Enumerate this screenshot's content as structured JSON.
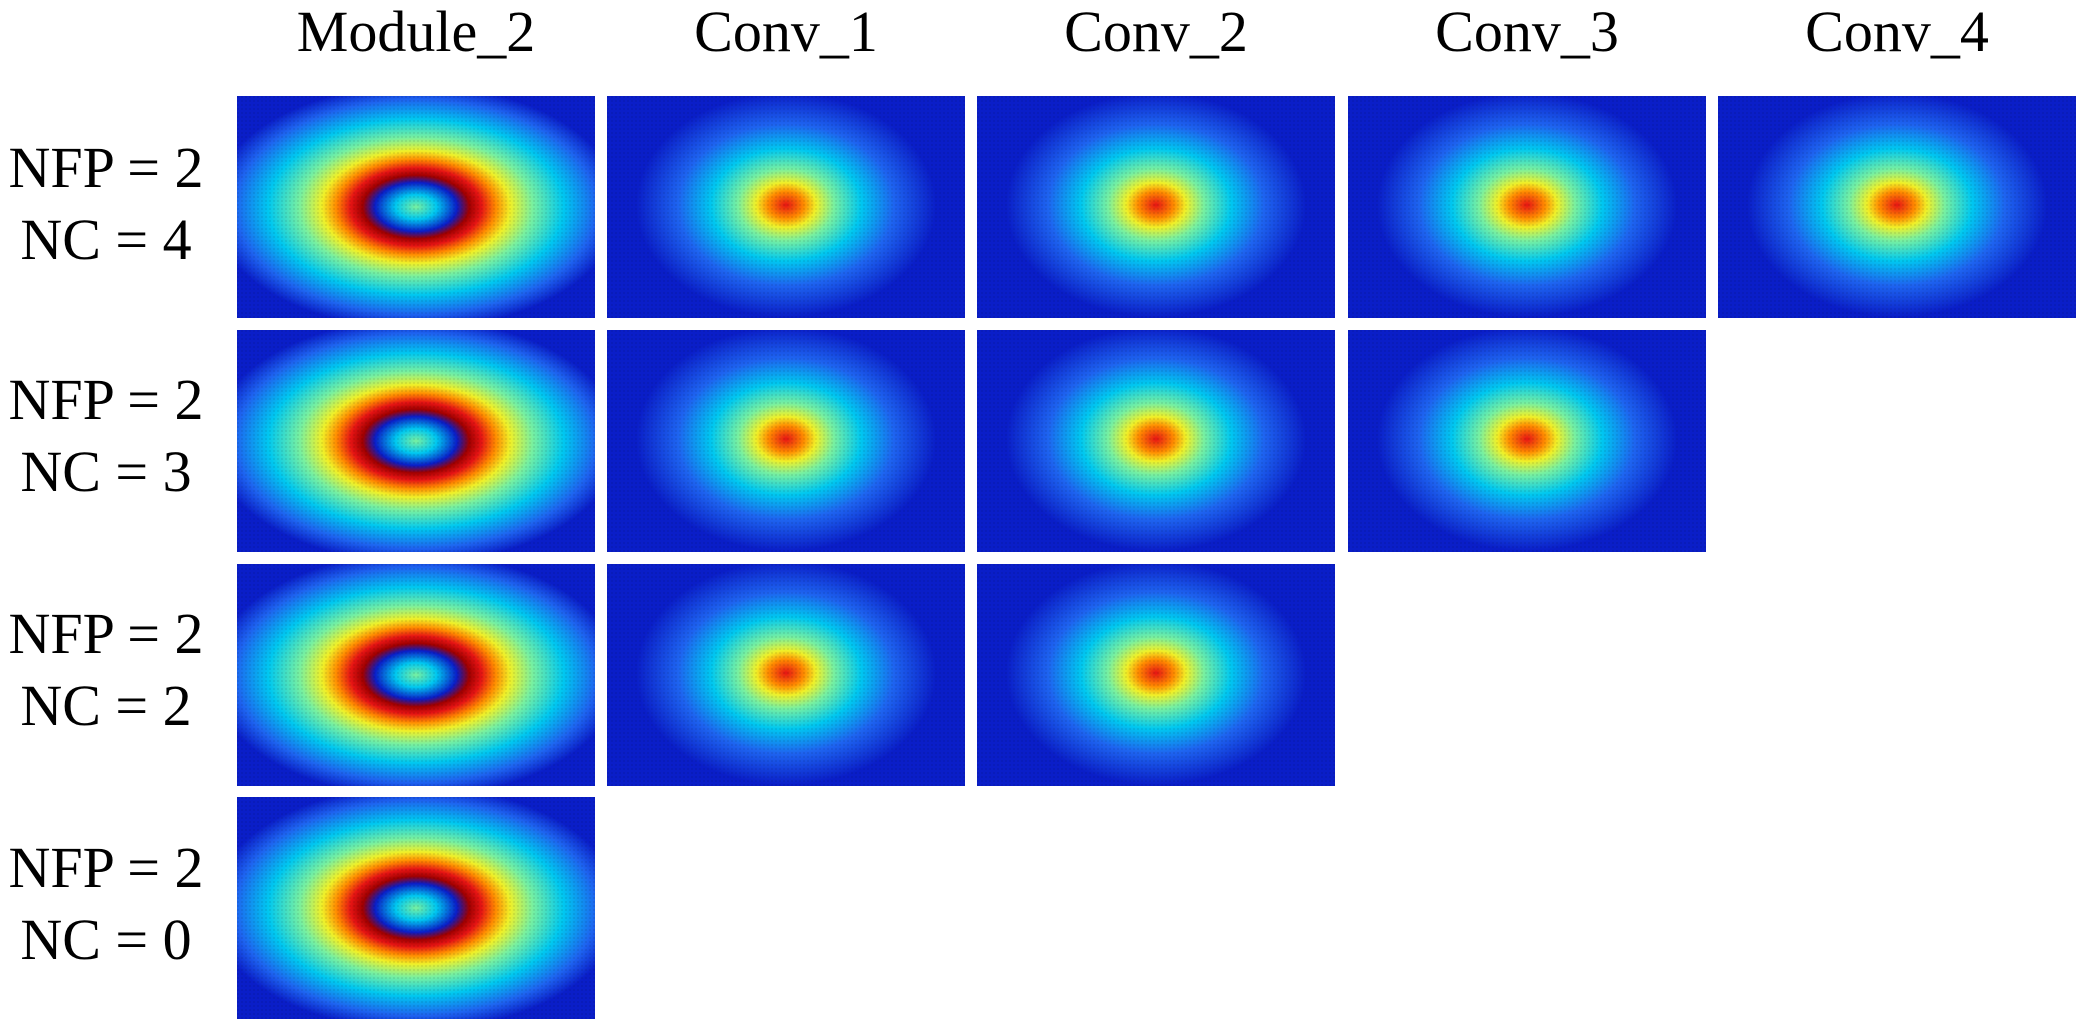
{
  "column_headers": [
    "Module_2",
    "Conv_1",
    "Conv_2",
    "Conv_3",
    "Conv_4"
  ],
  "rows": [
    {
      "line1": "NFP = 2",
      "line2": "NC = 4",
      "panels": [
        {
          "column": "Module_2",
          "pattern": "ring"
        },
        {
          "column": "Conv_1",
          "pattern": "spot"
        },
        {
          "column": "Conv_2",
          "pattern": "spot"
        },
        {
          "column": "Conv_3",
          "pattern": "spot"
        },
        {
          "column": "Conv_4",
          "pattern": "spot"
        }
      ]
    },
    {
      "line1": "NFP = 2",
      "line2": "NC = 3",
      "panels": [
        {
          "column": "Module_2",
          "pattern": "ring"
        },
        {
          "column": "Conv_1",
          "pattern": "spot"
        },
        {
          "column": "Conv_2",
          "pattern": "spot"
        },
        {
          "column": "Conv_3",
          "pattern": "spot"
        }
      ]
    },
    {
      "line1": "NFP = 2",
      "line2": "NC = 2",
      "panels": [
        {
          "column": "Module_2",
          "pattern": "ring"
        },
        {
          "column": "Conv_1",
          "pattern": "spot"
        },
        {
          "column": "Conv_2",
          "pattern": "spot"
        }
      ]
    },
    {
      "line1": "NFP = 2",
      "line2": "NC = 0",
      "panels": [
        {
          "column": "Module_2",
          "pattern": "ring"
        }
      ]
    }
  ],
  "colormap": [
    "#00008f",
    "#0a1ec8",
    "#1e64f0",
    "#00c8f0",
    "#78f0a0",
    "#f0f028",
    "#ff8c00",
    "#e61414",
    "#a00000"
  ]
}
